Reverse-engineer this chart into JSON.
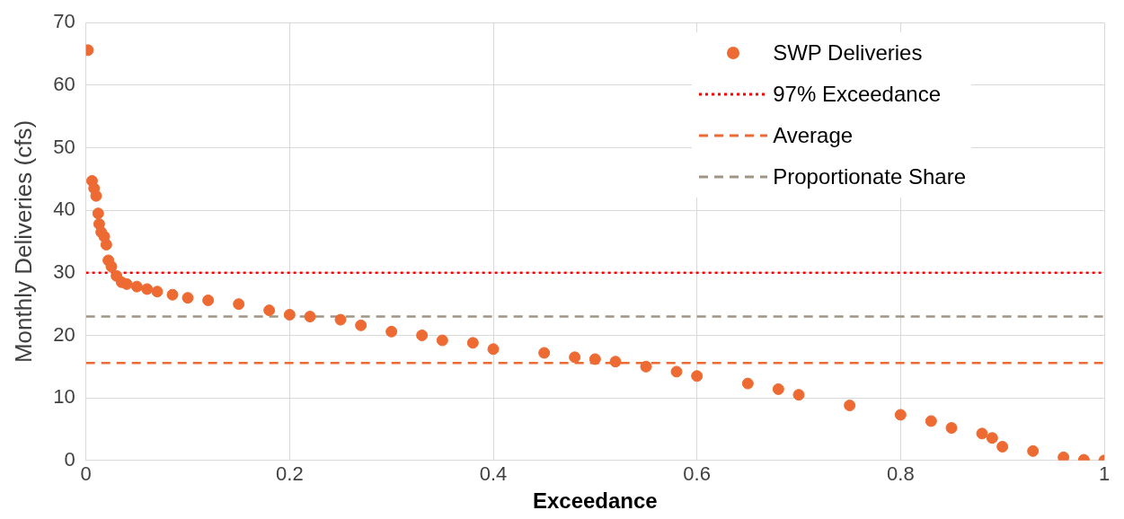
{
  "chart_data": {
    "type": "scatter",
    "xlabel": "Exceedance",
    "ylabel": "Monthly Deliveries (cfs)",
    "xlim": [
      0,
      1
    ],
    "xticks": [
      0,
      0.2,
      0.4,
      0.6,
      0.8,
      1
    ],
    "ylim": [
      0,
      70
    ],
    "yticks": [
      0,
      10,
      20,
      30,
      40,
      50,
      60,
      70
    ],
    "grid": true,
    "legend": "top right",
    "marker": "circle",
    "series": [
      {
        "name": "SWP Deliveries",
        "color": "#ed6b33",
        "x": [
          0.002,
          0.006,
          0.008,
          0.01,
          0.012,
          0.013,
          0.015,
          0.018,
          0.02,
          0.022,
          0.025,
          0.03,
          0.035,
          0.04,
          0.05,
          0.06,
          0.07,
          0.085,
          0.1,
          0.12,
          0.15,
          0.18,
          0.2,
          0.22,
          0.25,
          0.27,
          0.3,
          0.33,
          0.35,
          0.38,
          0.4,
          0.45,
          0.48,
          0.5,
          0.52,
          0.55,
          0.58,
          0.6,
          0.65,
          0.68,
          0.7,
          0.75,
          0.8,
          0.83,
          0.85,
          0.88,
          0.89,
          0.9,
          0.93,
          0.96,
          0.98,
          1
        ],
        "values": [
          65.6,
          44.7,
          43.5,
          42.3,
          39.5,
          37.8,
          36.5,
          35.8,
          34.5,
          32,
          31,
          29.5,
          28.5,
          28.2,
          27.8,
          27.4,
          27,
          26.5,
          26,
          25.6,
          25,
          24,
          23.3,
          23,
          22.5,
          21.6,
          20.6,
          20,
          19.2,
          18.8,
          17.8,
          17.2,
          16.5,
          16.2,
          15.8,
          15,
          14.2,
          13.5,
          12.3,
          11.4,
          10.5,
          8.8,
          7.3,
          6.3,
          5.2,
          4.3,
          3.6,
          2.2,
          1.5,
          0.5,
          0.1,
          0
        ]
      }
    ],
    "ref_lines": [
      {
        "axis": "y",
        "value": 30,
        "label": "97% Exceedance",
        "color": "#ff0000",
        "line_style": "dotted"
      },
      {
        "axis": "y",
        "value": 15.6,
        "label": "Average",
        "color": "#ed6b33",
        "line_style": "dashed"
      },
      {
        "axis": "y",
        "value": 23,
        "label": "Proportionate Share",
        "color": "#a09585",
        "line_style": "dashed"
      }
    ]
  }
}
